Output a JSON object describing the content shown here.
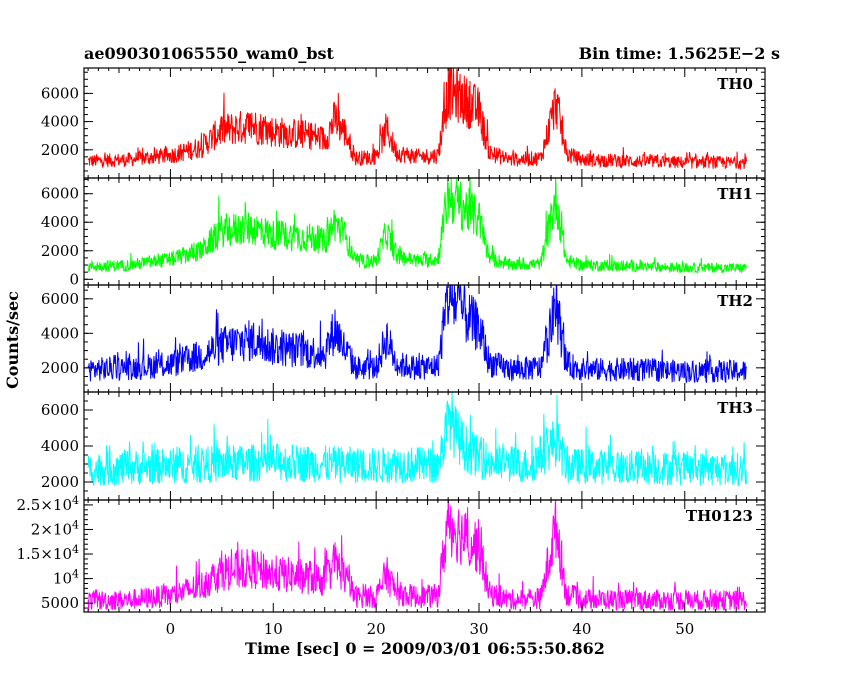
{
  "header": {
    "left": "ae090301065550_wam0_bst",
    "right": "Bin time: 1.5625E−2 s"
  },
  "chart_data": {
    "type": "line",
    "xlabel": "Time [sec] 0 = 2009/03/01 06:55:50.862",
    "ylabel": "Counts/sec",
    "xlim": [
      -8.4,
      57.8
    ],
    "x_ticks": [
      "0",
      "10",
      "20",
      "30",
      "40",
      "50"
    ],
    "x_tick_values": [
      0,
      10,
      20,
      30,
      40,
      50
    ],
    "panels": [
      {
        "name": "TH0",
        "color": "#ff0000",
        "ylim": [
          0,
          7800
        ],
        "y_ticks": [
          {
            "v": 2000,
            "label": "2000"
          },
          {
            "v": 4000,
            "label": "4000"
          },
          {
            "v": 6000,
            "label": "6000"
          }
        ],
        "y_minor_step": 500,
        "series": {
          "x": [
            -8,
            -4,
            0,
            3,
            5,
            8,
            10,
            14,
            15,
            16,
            17,
            18,
            20,
            21,
            22,
            24,
            26,
            27,
            28,
            29,
            30,
            31,
            33,
            36,
            37.5,
            38.5,
            40,
            45,
            50,
            56
          ],
          "y": [
            1200,
            1300,
            1600,
            2200,
            3400,
            3700,
            3300,
            3000,
            2700,
            4200,
            3200,
            1400,
            1500,
            3500,
            1800,
            1500,
            1600,
            6200,
            5800,
            5300,
            4800,
            1800,
            1300,
            1400,
            5400,
            1700,
            1300,
            1200,
            1100,
            1100
          ]
        }
      },
      {
        "name": "TH1",
        "color": "#00ff00",
        "ylim": [
          -400,
          7100
        ],
        "y_ticks": [
          {
            "v": 0,
            "label": "0"
          },
          {
            "v": 2000,
            "label": "2000"
          },
          {
            "v": 4000,
            "label": "4000"
          },
          {
            "v": 6000,
            "label": "6000"
          }
        ],
        "y_minor_step": 500,
        "series": {
          "x": [
            -8,
            -4,
            0,
            3,
            5,
            8,
            10,
            14,
            15,
            16,
            17,
            18,
            20,
            21,
            22,
            24,
            26,
            27,
            28,
            29,
            30,
            31,
            33,
            36,
            37.5,
            38.5,
            40,
            45,
            50,
            56
          ],
          "y": [
            900,
            1000,
            1400,
            2000,
            3400,
            3600,
            3100,
            2900,
            2600,
            4000,
            3000,
            1200,
            1300,
            3300,
            1600,
            1300,
            1400,
            6000,
            5300,
            4800,
            4200,
            1500,
            1000,
            1100,
            5700,
            1300,
            1000,
            900,
            800,
            800
          ]
        }
      },
      {
        "name": "TH2",
        "color": "#0000ff",
        "ylim": [
          600,
          6800
        ],
        "y_ticks": [
          {
            "v": 2000,
            "label": "2000"
          },
          {
            "v": 4000,
            "label": "4000"
          },
          {
            "v": 6000,
            "label": "6000"
          }
        ],
        "y_minor_step": 500,
        "series": {
          "x": [
            -8,
            -4,
            0,
            3,
            5,
            8,
            10,
            14,
            15,
            16,
            17,
            18,
            20,
            21,
            22,
            24,
            26,
            27,
            28,
            29,
            30,
            31,
            33,
            36,
            37.5,
            38.5,
            40,
            45,
            50,
            56
          ],
          "y": [
            1900,
            2000,
            2200,
            2700,
            3300,
            3600,
            3200,
            2900,
            2800,
            4300,
            3000,
            2000,
            2000,
            3800,
            2200,
            2000,
            2100,
            6100,
            5600,
            4800,
            4300,
            2300,
            1900,
            2000,
            5600,
            2200,
            1900,
            1900,
            1800,
            1800
          ]
        }
      },
      {
        "name": "TH3",
        "color": "#00ffff",
        "ylim": [
          1000,
          7000
        ],
        "y_ticks": [
          {
            "v": 2000,
            "label": "2000"
          },
          {
            "v": 4000,
            "label": "4000"
          },
          {
            "v": 6000,
            "label": "6000"
          }
        ],
        "y_minor_step": 500,
        "series": {
          "x": [
            -8,
            -4,
            0,
            5,
            10,
            15,
            20,
            22,
            26,
            27.2,
            27.8,
            29,
            31,
            35,
            37.5,
            38.5,
            45,
            56
          ],
          "y": [
            2700,
            2800,
            2900,
            3000,
            3100,
            3000,
            2900,
            3000,
            2900,
            5700,
            4600,
            3700,
            3100,
            2900,
            4300,
            2900,
            2800,
            2700
          ]
        }
      },
      {
        "name": "TH0123",
        "color": "#ff00ff",
        "ylim": [
          3200,
          26000
        ],
        "y_ticks": [
          {
            "v": 5000,
            "label": "5000"
          },
          {
            "v": 10000,
            "label": "10^4"
          },
          {
            "v": 15000,
            "label": "1.5×10^4"
          },
          {
            "v": 20000,
            "label": "2×10^4"
          },
          {
            "v": 25000,
            "label": "2.5×10^4"
          }
        ],
        "y_minor_step": 1000,
        "series": {
          "x": [
            -8,
            -4,
            0,
            3,
            5,
            8,
            10,
            14,
            15,
            16,
            17,
            18,
            20,
            21,
            22,
            24,
            26,
            27,
            28,
            29,
            30,
            31,
            33,
            36,
            37.5,
            38.5,
            40,
            45,
            50,
            56
          ],
          "y": [
            5500,
            5700,
            6500,
            8500,
            11500,
            12000,
            11000,
            10200,
            9500,
            13500,
            10200,
            6300,
            6300,
            11000,
            7000,
            6300,
            6500,
            22000,
            19500,
            17500,
            16500,
            7000,
            5700,
            6000,
            21000,
            6800,
            5800,
            5700,
            5600,
            5600
          ]
        }
      }
    ]
  }
}
